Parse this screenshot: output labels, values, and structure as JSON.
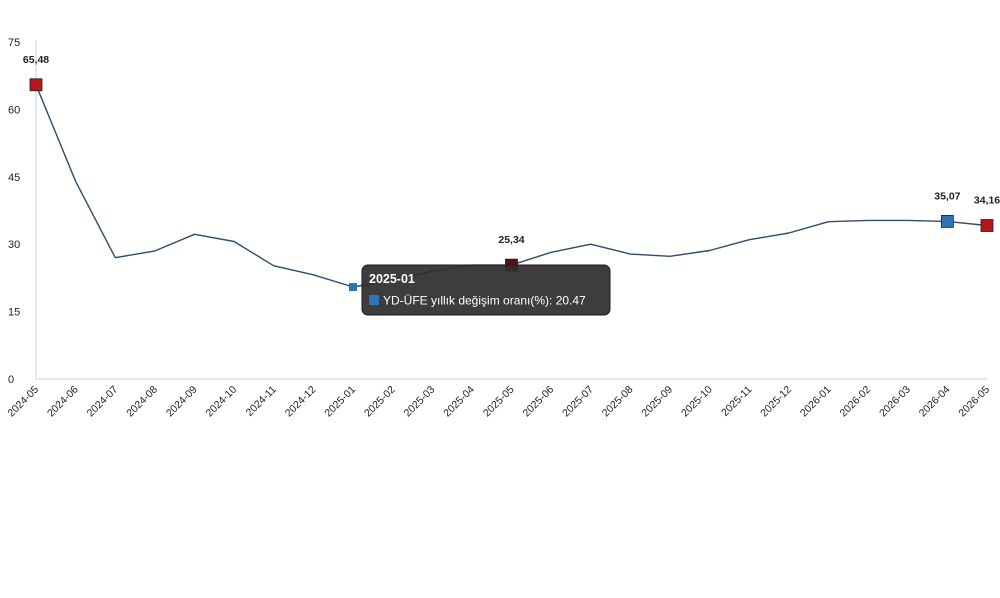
{
  "chart_data": {
    "type": "line",
    "title": "",
    "xlabel": "",
    "ylabel": "",
    "ylim": [
      0,
      75
    ],
    "yticks": [
      0,
      15,
      30,
      45,
      60,
      75
    ],
    "grid": false,
    "categories": [
      "2024-05",
      "2024-06",
      "2024-07",
      "2024-08",
      "2024-09",
      "2024-10",
      "2024-11",
      "2024-12",
      "2025-01",
      "2025-02",
      "2025-03",
      "2025-04",
      "2025-05",
      "2025-06",
      "2025-07",
      "2025-08",
      "2025-09",
      "2025-10",
      "2025-11",
      "2025-12",
      "2026-01",
      "2026-02",
      "2026-03",
      "2026-04",
      "2026-05"
    ],
    "series": [
      {
        "name": "YD-ÜFE yıllık değişim oranı(%)",
        "color": "#2f4b6e",
        "values": [
          65.48,
          44,
          27,
          28.5,
          32.2,
          30.6,
          25.2,
          23.2,
          20.47,
          22,
          24,
          25.34,
          25.34,
          28.2,
          30,
          27.8,
          27.3,
          28.6,
          31,
          32.5,
          35,
          35.3,
          35.3,
          35.07,
          34.16
        ]
      }
    ],
    "markers": [
      {
        "index": 0,
        "label": "65,48",
        "color": "#b5161c"
      },
      {
        "index": 12,
        "label": "25,34",
        "color": "#5a0d12"
      },
      {
        "index": 23,
        "label": "35,07",
        "color": "#2f75b5"
      },
      {
        "index": 24,
        "label": "34,16",
        "color": "#b5161c"
      }
    ],
    "tooltip": {
      "index": 8,
      "title": "2025-01",
      "text": "YD-ÜFE yıllık değişim oranı(%): 20.47",
      "swatch_color": "#2f75b5"
    }
  }
}
